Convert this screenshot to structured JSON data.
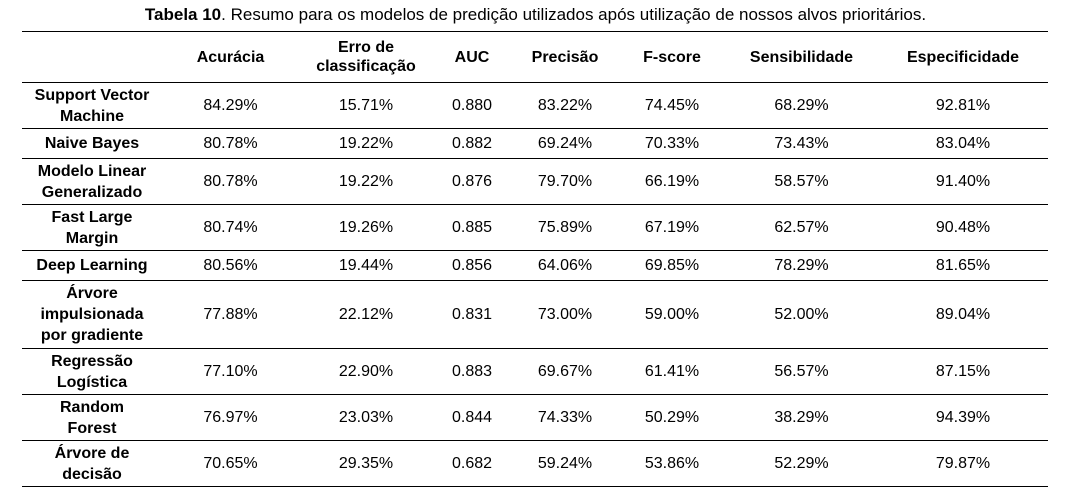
{
  "caption": {
    "label": "Tabela 10",
    "text": ". Resumo para os modelos de predição utilizados após utilização de nossos alvos prioritários."
  },
  "table": {
    "columns": {
      "corner": "",
      "acuracia": "Acurácia",
      "erro": "Erro de classificação",
      "auc": "AUC",
      "precisao": "Precisão",
      "fscore": "F-score",
      "sensibilidade": "Sensibilidade",
      "especificidade": "Especificidade"
    },
    "rows": [
      {
        "model": "Support Vector Machine",
        "values": [
          "84.29%",
          "15.71%",
          "0.880",
          "83.22%",
          "74.45%",
          "68.29%",
          "92.81%"
        ]
      },
      {
        "model": "Naive Bayes",
        "values": [
          "80.78%",
          "19.22%",
          "0.882",
          "69.24%",
          "70.33%",
          "73.43%",
          "83.04%"
        ]
      },
      {
        "model": "Modelo Linear Generalizado",
        "values": [
          "80.78%",
          "19.22%",
          "0.876",
          "79.70%",
          "66.19%",
          "58.57%",
          "91.40%"
        ]
      },
      {
        "model": "Fast Large Margin",
        "values": [
          "80.74%",
          "19.26%",
          "0.885",
          "75.89%",
          "67.19%",
          "62.57%",
          "90.48%"
        ]
      },
      {
        "model": "Deep Learning",
        "values": [
          "80.56%",
          "19.44%",
          "0.856",
          "64.06%",
          "69.85%",
          "78.29%",
          "81.65%"
        ]
      },
      {
        "model": "Árvore impulsionada por gradiente",
        "values": [
          "77.88%",
          "22.12%",
          "0.831",
          "73.00%",
          "59.00%",
          "52.00%",
          "89.04%"
        ]
      },
      {
        "model": "Regressão Logística",
        "values": [
          "77.10%",
          "22.90%",
          "0.883",
          "69.67%",
          "61.41%",
          "56.57%",
          "87.15%"
        ]
      },
      {
        "model": "Random Forest",
        "values": [
          "76.97%",
          "23.03%",
          "0.844",
          "74.33%",
          "50.29%",
          "38.29%",
          "94.39%"
        ]
      },
      {
        "model": "Árvore de decisão",
        "values": [
          "70.65%",
          "29.35%",
          "0.682",
          "59.24%",
          "53.86%",
          "52.29%",
          "79.87%"
        ]
      }
    ]
  }
}
